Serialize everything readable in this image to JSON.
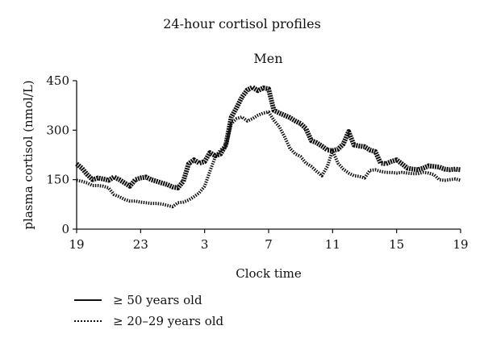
{
  "chart_data": {
    "type": "line",
    "title": "24-hour cortisol profiles",
    "subtitle": "Men",
    "xlabel": "Clock time",
    "ylabel": "plasma cortisol (nmol/L)",
    "xlim": [
      0,
      24
    ],
    "ylim": [
      0,
      450
    ],
    "x_ticks": [
      0,
      4,
      8,
      12,
      16,
      20,
      24
    ],
    "x_tick_labels": [
      "19",
      "23",
      "3",
      "7",
      "11",
      "15",
      "19"
    ],
    "y_ticks": [
      0,
      150,
      300,
      450
    ],
    "y_tick_labels": [
      "0",
      "150",
      "300",
      "450"
    ],
    "legend_position": "bottom-left",
    "series": [
      {
        "name": "≥ 50 years old",
        "style": "solid",
        "x": [
          0,
          0.33,
          0.67,
          1,
          1.33,
          1.67,
          2,
          2.33,
          2.67,
          3,
          3.33,
          3.67,
          4,
          4.33,
          4.67,
          5,
          5.33,
          5.67,
          6,
          6.33,
          6.67,
          7,
          7.33,
          7.67,
          8,
          8.33,
          8.67,
          9,
          9.33,
          9.67,
          10,
          10.33,
          10.67,
          11,
          11.33,
          11.67,
          12,
          12.33,
          12.67,
          13,
          13.33,
          13.67,
          14,
          14.33,
          14.67,
          15,
          15.33,
          15.67,
          16,
          16.33,
          16.67,
          17,
          17.33,
          17.67,
          18,
          18.33,
          18.67,
          19,
          19.33,
          19.67,
          20,
          20.33,
          20.67,
          21,
          21.33,
          21.67,
          22,
          22.33,
          22.67,
          23,
          23.33,
          23.67,
          24
        ],
        "y": [
          198,
          185,
          165,
          150,
          155,
          152,
          148,
          158,
          150,
          140,
          130,
          150,
          155,
          158,
          150,
          145,
          140,
          135,
          128,
          125,
          145,
          198,
          210,
          200,
          205,
          232,
          222,
          228,
          255,
          340,
          368,
          400,
          422,
          430,
          420,
          428,
          425,
          360,
          352,
          345,
          338,
          328,
          320,
          305,
          268,
          262,
          252,
          240,
          238,
          242,
          258,
          296,
          255,
          252,
          250,
          240,
          235,
          200,
          198,
          205,
          210,
          198,
          185,
          182,
          180,
          185,
          192,
          190,
          188,
          182,
          180,
          182,
          180
        ]
      },
      {
        "name": "≥ 20–29 years old",
        "style": "dotted",
        "x": [
          0,
          0.33,
          0.67,
          1,
          1.33,
          1.67,
          2,
          2.33,
          2.67,
          3,
          3.33,
          3.67,
          4,
          4.33,
          4.67,
          5,
          5.33,
          5.67,
          6,
          6.33,
          6.67,
          7,
          7.33,
          7.67,
          8,
          8.33,
          8.67,
          9,
          9.33,
          9.67,
          10,
          10.33,
          10.67,
          11,
          11.33,
          11.67,
          12,
          12.33,
          12.67,
          13,
          13.33,
          13.67,
          14,
          14.33,
          14.67,
          15,
          15.33,
          15.67,
          16,
          16.33,
          16.67,
          17,
          17.33,
          17.67,
          18,
          18.33,
          18.67,
          19,
          19.33,
          19.67,
          20,
          20.33,
          20.67,
          21,
          21.33,
          21.67,
          22,
          22.33,
          22.67,
          23,
          23.33,
          23.67,
          24
        ],
        "y": [
          148,
          145,
          140,
          132,
          132,
          130,
          125,
          105,
          98,
          90,
          85,
          85,
          82,
          80,
          78,
          78,
          76,
          72,
          68,
          80,
          82,
          88,
          98,
          110,
          130,
          175,
          220,
          240,
          250,
          320,
          335,
          340,
          328,
          335,
          345,
          352,
          355,
          330,
          310,
          280,
          245,
          228,
          220,
          200,
          190,
          175,
          162,
          190,
          238,
          200,
          182,
          170,
          162,
          160,
          155,
          178,
          180,
          175,
          172,
          172,
          170,
          172,
          170,
          168,
          168,
          172,
          170,
          165,
          150,
          148,
          150,
          152,
          148
        ]
      }
    ]
  }
}
